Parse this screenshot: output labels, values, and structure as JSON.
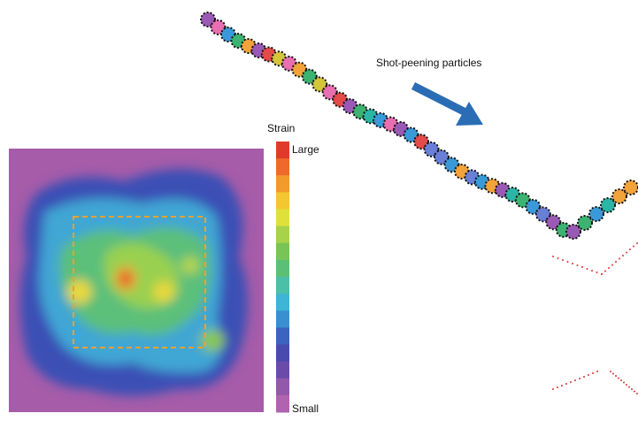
{
  "annotation": "Shot-peening particles",
  "colorbar": {
    "title": "Strain",
    "max_label": "Large",
    "min_label": "Small"
  }
}
